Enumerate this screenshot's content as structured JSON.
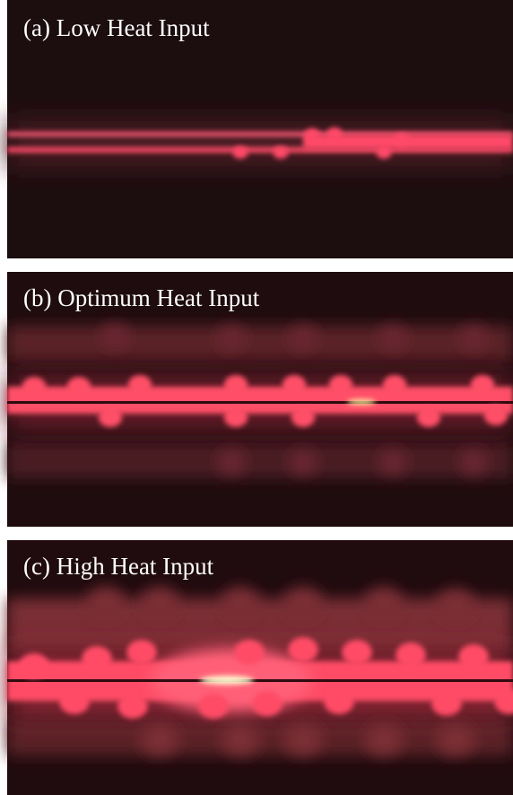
{
  "panels": [
    {
      "label": "(a) Low Heat Input"
    },
    {
      "label": "(b) Optimum Heat Input"
    },
    {
      "label": "(c) High Heat Input"
    }
  ]
}
